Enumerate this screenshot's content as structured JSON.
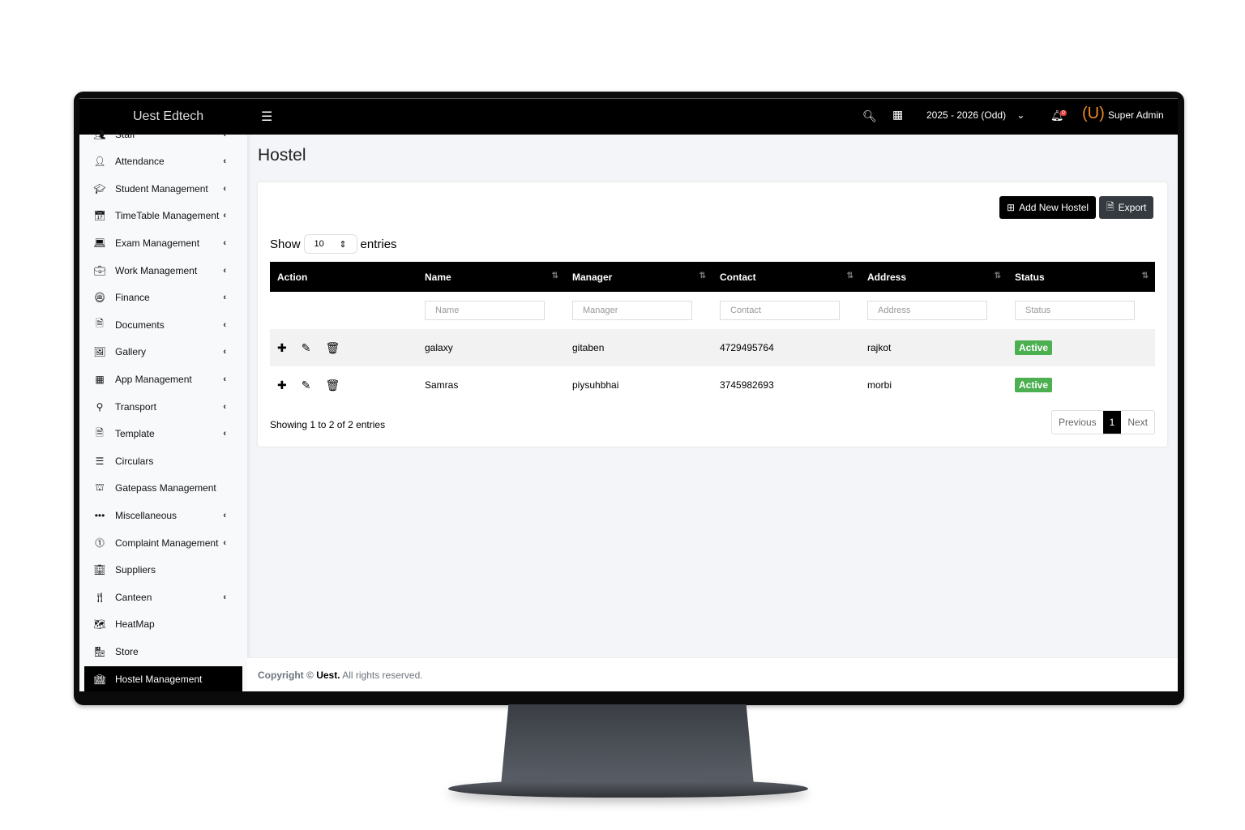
{
  "app": {
    "brand": "Uest Edtech",
    "session": "2025 - 2026 (Odd)",
    "notifications": "0",
    "user": "Super Admin"
  },
  "sidebar": {
    "items": [
      {
        "label": "Staff",
        "icon": "users-icon",
        "chevron": true
      },
      {
        "label": "Attendance",
        "icon": "user-check-icon",
        "chevron": true
      },
      {
        "label": "Student Management",
        "icon": "graduate-icon",
        "chevron": true
      },
      {
        "label": "TimeTable Management",
        "icon": "calendar-icon",
        "chevron": true
      },
      {
        "label": "Exam Management",
        "icon": "laptop-icon",
        "chevron": true
      },
      {
        "label": "Work Management",
        "icon": "briefcase-icon",
        "chevron": true
      },
      {
        "label": "Finance",
        "icon": "coins-icon",
        "chevron": true
      },
      {
        "label": "Documents",
        "icon": "file-icon",
        "chevron": true
      },
      {
        "label": "Gallery",
        "icon": "images-icon",
        "chevron": true
      },
      {
        "label": "App Management",
        "icon": "grid-icon",
        "chevron": true
      },
      {
        "label": "Transport",
        "icon": "route-icon",
        "chevron": true
      },
      {
        "label": "Template",
        "icon": "file-icon",
        "chevron": true
      },
      {
        "label": "Circulars",
        "icon": "list-icon",
        "chevron": false
      },
      {
        "label": "Gatepass Management",
        "icon": "gate-icon",
        "chevron": false
      },
      {
        "label": "Miscellaneous",
        "icon": "ellipsis-icon",
        "chevron": true
      },
      {
        "label": "Complaint Management",
        "icon": "alert-icon",
        "chevron": true
      },
      {
        "label": "Suppliers",
        "icon": "building-icon",
        "chevron": false
      },
      {
        "label": "Canteen",
        "icon": "utensils-icon",
        "chevron": true
      },
      {
        "label": "HeatMap",
        "icon": "map-icon",
        "chevron": false
      },
      {
        "label": "Store",
        "icon": "store-icon",
        "chevron": false
      },
      {
        "label": "Hostel Management",
        "icon": "hotel-icon",
        "chevron": false,
        "active": true
      }
    ]
  },
  "page": {
    "title": "Hostel",
    "add_label": "Add New Hostel",
    "export_label": "Export",
    "show": "Show",
    "entries": "entries",
    "page_length": "10"
  },
  "table": {
    "headers": [
      "Action",
      "Name",
      "Manager",
      "Contact",
      "Address",
      "Status"
    ],
    "filters": [
      "Name",
      "Manager",
      "Contact",
      "Address",
      "Status"
    ],
    "rows": [
      {
        "name": "galaxy",
        "manager": "gitaben",
        "contact": "4729495764",
        "address": "rajkot",
        "status": "Active"
      },
      {
        "name": "Samras",
        "manager": "piysuhbhai",
        "contact": "3745982693",
        "address": "morbi",
        "status": "Active"
      }
    ]
  },
  "pagination": {
    "info": "Showing 1 to 2 of 2 entries",
    "previous": "Previous",
    "current": "1",
    "next": "Next"
  },
  "footer": {
    "copyright": "Copyright ©",
    "company": "Uest.",
    "rights": "All rights reserved."
  },
  "colors": {
    "status_active": "#4caf50",
    "topbar": "#000000",
    "badge": "#e53935",
    "logo": "#f08a24"
  }
}
